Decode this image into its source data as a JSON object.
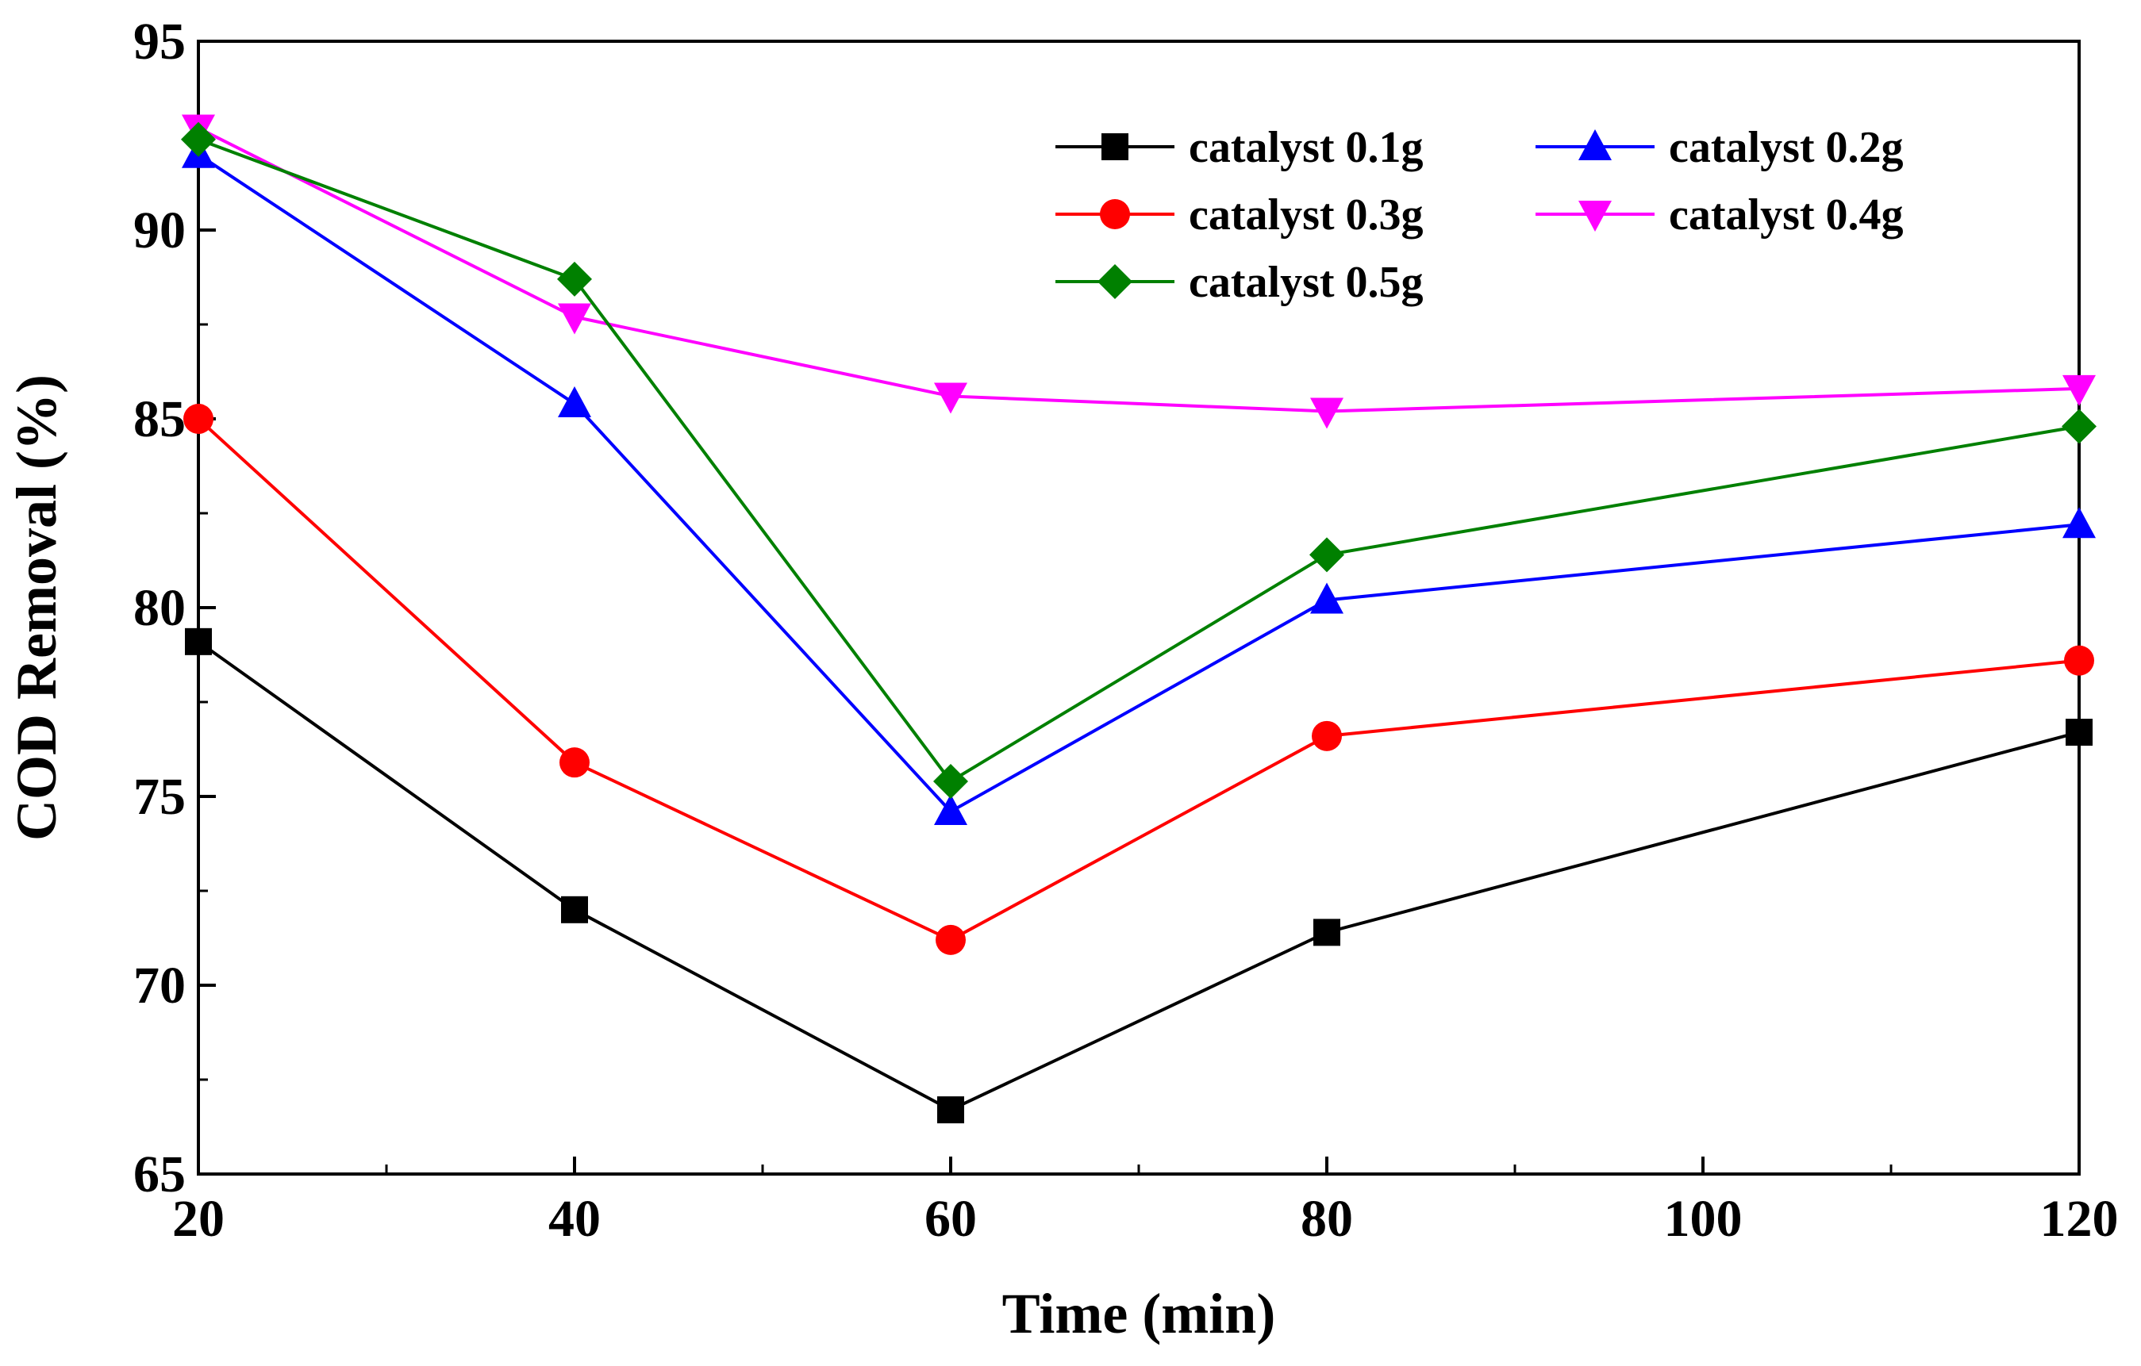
{
  "chart_data": {
    "type": "line",
    "title": "",
    "xlabel": "Time (min)",
    "ylabel": "COD Removal (%)",
    "xlim": [
      20,
      120
    ],
    "ylim": [
      65,
      95
    ],
    "xticks": [
      20,
      40,
      60,
      80,
      100,
      120
    ],
    "yticks": [
      65,
      70,
      75,
      80,
      85,
      90,
      95
    ],
    "x": [
      20,
      40,
      60,
      80,
      120
    ],
    "legend_position": "top-right",
    "grid": false,
    "series": [
      {
        "name": "catalyst 0.1g",
        "color": "#000000",
        "marker": "square",
        "values": [
          79.1,
          72.0,
          66.7,
          71.4,
          76.7
        ]
      },
      {
        "name": "catalyst 0.2g",
        "color": "#0000ff",
        "marker": "triangle-up",
        "values": [
          92.0,
          85.4,
          74.6,
          80.2,
          82.2
        ]
      },
      {
        "name": "catalyst 0.3g",
        "color": "#ff0000",
        "marker": "circle",
        "values": [
          85.0,
          75.9,
          71.2,
          76.6,
          78.6
        ]
      },
      {
        "name": "catalyst 0.4g",
        "color": "#ff00ff",
        "marker": "triangle-down",
        "values": [
          92.7,
          87.7,
          85.6,
          85.2,
          85.8
        ]
      },
      {
        "name": "catalyst 0.5g",
        "color": "#008000",
        "marker": "diamond",
        "values": [
          92.4,
          88.7,
          75.4,
          81.4,
          84.8
        ]
      }
    ]
  }
}
